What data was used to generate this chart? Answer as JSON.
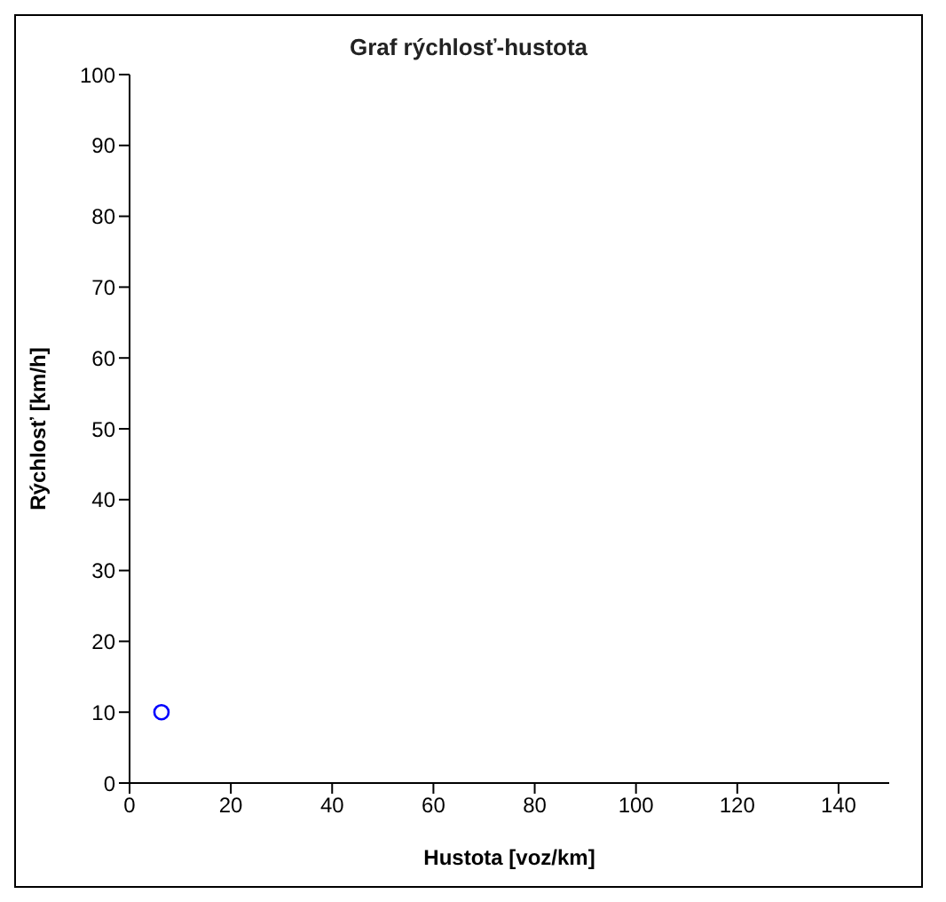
{
  "chart_data": {
    "type": "scatter",
    "title": "Graf rýchlosť-hustota",
    "xlabel": "Hustota [voz/km]",
    "ylabel": "Rýchlosť [km/h]",
    "x": [
      6.3
    ],
    "values": [
      10
    ],
    "color": "#0000ff",
    "marker": "circle",
    "xlim": [
      0,
      150
    ],
    "xticks": [
      0,
      20,
      40,
      60,
      80,
      100,
      120,
      140
    ],
    "ylim": [
      0,
      100
    ],
    "yticks": [
      0,
      10,
      20,
      30,
      40,
      50,
      60,
      70,
      80,
      90,
      100
    ],
    "grid": false
  }
}
